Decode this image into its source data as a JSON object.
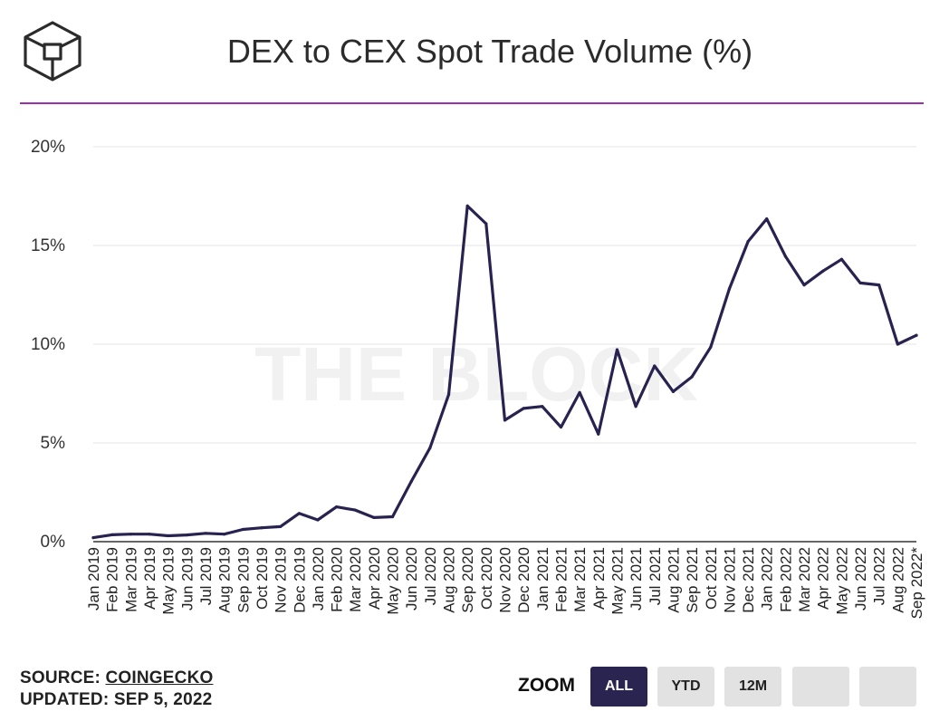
{
  "header": {
    "title": "DEX to CEX Spot Trade Volume (%)"
  },
  "watermark": "THE BLOCK",
  "colors": {
    "line": "#27224f",
    "accent_rule": "#9b2fae",
    "grid": "#e6e6e6",
    "button_active": "#2a2450",
    "button_inactive": "#e2e2e2"
  },
  "footer": {
    "source_label": "SOURCE:",
    "source_name": "COINGECKO",
    "updated": "UPDATED: SEP 5, 2022"
  },
  "zoom": {
    "label": "ZOOM",
    "buttons": [
      "ALL",
      "YTD",
      "12M",
      "",
      ""
    ],
    "active": "ALL"
  },
  "chart_data": {
    "type": "line",
    "title": "DEX to CEX Spot Trade Volume (%)",
    "xlabel": "",
    "ylabel": "",
    "ylim": [
      0,
      20
    ],
    "yticks": [
      "0%",
      "5%",
      "10%",
      "15%",
      "20%"
    ],
    "grid": true,
    "categories": [
      "Jan 2019",
      "Feb 2019",
      "Mar 2019",
      "Apr 2019",
      "May 2019",
      "Jun 2019",
      "Jul 2019",
      "Aug 2019",
      "Sep 2019",
      "Oct 2019",
      "Nov 2019",
      "Dec 2019",
      "Jan 2020",
      "Feb 2020",
      "Mar 2020",
      "Apr 2020",
      "May 2020",
      "Jun 2020",
      "Jul 2020",
      "Aug 2020",
      "Sep 2020",
      "Oct 2020",
      "Nov 2020",
      "Dec 2020",
      "Jan 2021",
      "Feb 2021",
      "Mar 2021",
      "Apr 2021",
      "May 2021",
      "Jun 2021",
      "Jul 2021",
      "Aug 2021",
      "Sep 2021",
      "Oct 2021",
      "Nov 2021",
      "Dec 2021",
      "Jan 2022",
      "Feb 2022",
      "Mar 2022",
      "Apr 2022",
      "May 2022",
      "Jun 2022",
      "Jul 2022",
      "Aug 2022",
      "Sep 2022*"
    ],
    "series": [
      {
        "values": [
          0.2,
          0.35,
          0.38,
          0.38,
          0.3,
          0.34,
          0.42,
          0.38,
          0.62,
          0.7,
          0.76,
          1.43,
          1.1,
          1.76,
          1.6,
          1.22,
          1.26,
          3.05,
          4.75,
          7.45,
          17.0,
          16.1,
          6.15,
          6.75,
          6.85,
          5.8,
          7.55,
          5.45,
          9.72,
          6.85,
          8.9,
          7.6,
          8.35,
          9.85,
          12.8,
          15.2,
          16.35,
          14.45,
          13.0,
          13.7,
          14.3,
          13.1,
          13.0,
          10.0,
          10.45
        ]
      }
    ]
  }
}
